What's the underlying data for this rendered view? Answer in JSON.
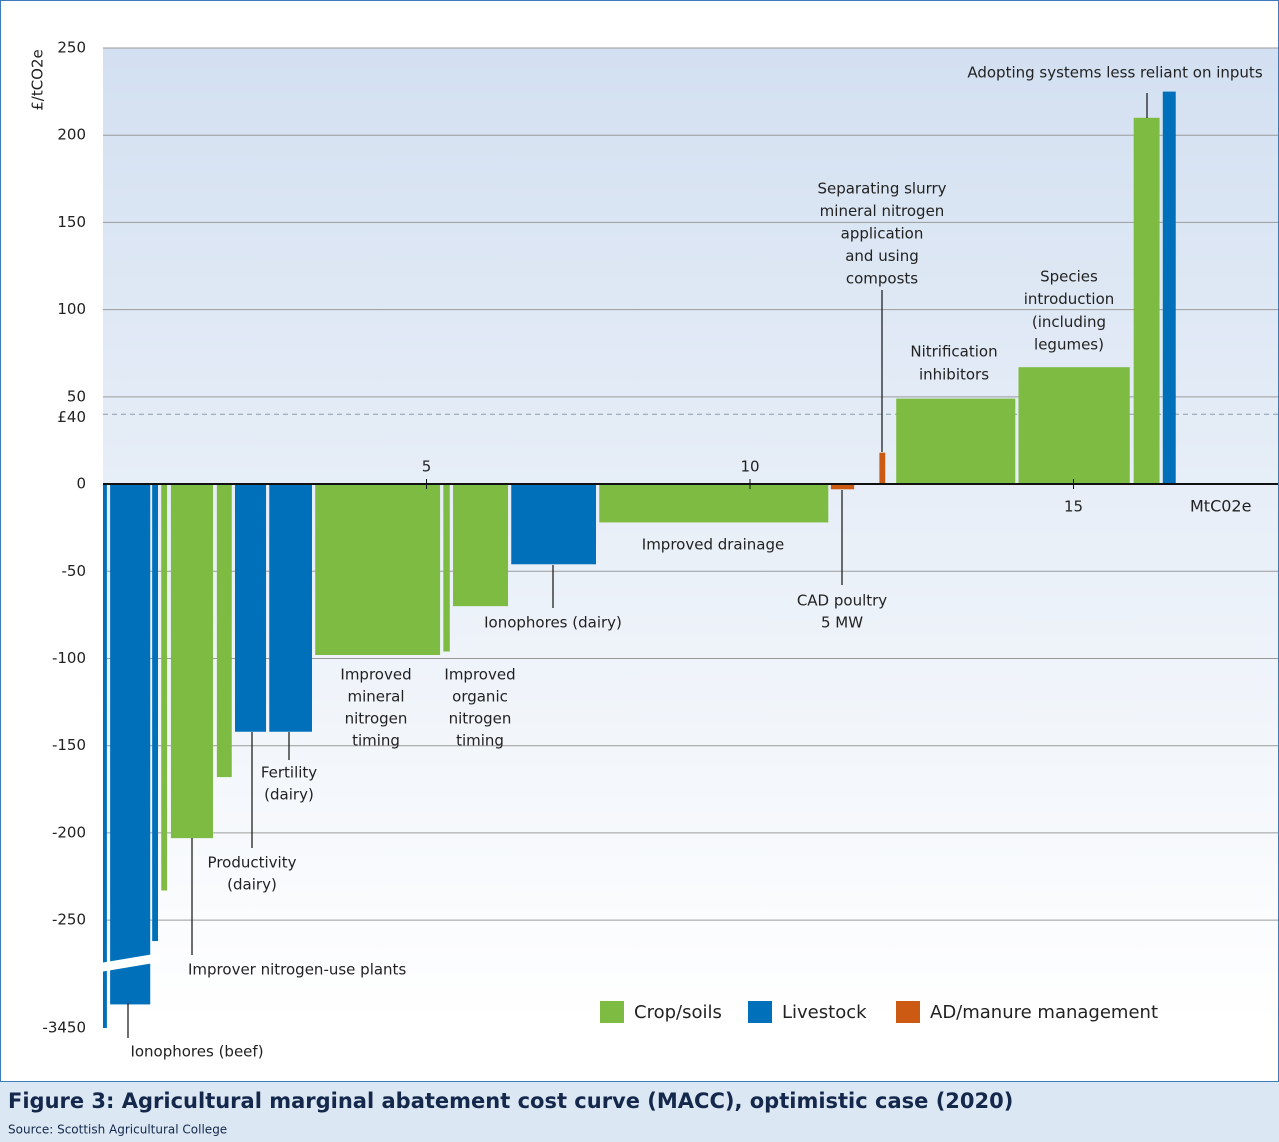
{
  "chart_data": {
    "type": "macc",
    "title": "Figure 3: Agricultural marginal abatement cost curve (MACC), optimistic case (2020)",
    "source": "Source: Scottish Agricultural College",
    "y_label": "£/tCO2e",
    "x_label": "MtC02e",
    "ylim": [
      -3450,
      250
    ],
    "y_break": -270,
    "yticks": [
      250,
      200,
      150,
      100,
      50,
      0,
      -50,
      -100,
      -150,
      -200,
      -250,
      -3450
    ],
    "xlim": [
      0,
      18.2
    ],
    "xticks": [
      5,
      10,
      15
    ],
    "reference": {
      "value": 40,
      "label": "£40"
    },
    "grid": true,
    "groups": [
      {
        "name": "Crop/soils",
        "color": "#7dbb42"
      },
      {
        "name": "Livestock",
        "color": "#0070ba"
      },
      {
        "name": "AD/manure management",
        "color": "#cc5a12"
      }
    ],
    "bars": {
      "group": [
        1,
        1,
        1,
        0,
        0,
        0,
        1,
        1,
        0,
        0,
        0,
        1,
        0,
        2,
        2,
        0,
        0,
        0,
        1
      ],
      "x0": [
        0,
        0.11,
        0.76,
        0.9,
        1.05,
        1.76,
        2.04,
        2.57,
        3.28,
        5.26,
        5.41,
        6.31,
        7.67,
        11.25,
        12.0,
        12.26,
        14.15,
        15.93,
        16.38
      ],
      "x1": [
        0.06,
        0.73,
        0.85,
        0.99,
        1.7,
        1.99,
        2.52,
        3.23,
        5.21,
        5.36,
        6.26,
        7.62,
        11.21,
        11.61,
        12.09,
        14.1,
        15.87,
        16.33,
        16.58
      ],
      "values": [
        -3450,
        -2200,
        -262,
        -233,
        -203,
        -168,
        -142,
        -142,
        -98,
        -96,
        -70,
        -46,
        -22,
        -3,
        18,
        49,
        67,
        210,
        225
      ]
    },
    "annotations": [
      [
        "Adopting systems less reliant on inputs"
      ],
      [
        "Separating slurry",
        "mineral nitrogen",
        "application",
        "and using",
        "composts"
      ],
      [
        "Nitrification",
        "inhibitors"
      ],
      [
        "Species",
        "introduction",
        "(including",
        "legumes)"
      ],
      [
        "Improved drainage"
      ],
      [
        "CAD poultry",
        "5 MW"
      ],
      [
        "Ionophores (dairy)"
      ],
      [
        "Improved",
        "mineral",
        "nitrogen",
        "timing"
      ],
      [
        "Improved",
        "organic",
        "nitrogen",
        "timing"
      ],
      [
        "Fertility",
        "(dairy)"
      ],
      [
        "Productivity",
        "(dairy)"
      ],
      [
        "Improver nitrogen-use plants"
      ],
      [
        "Ionophores (beef)"
      ]
    ]
  }
}
